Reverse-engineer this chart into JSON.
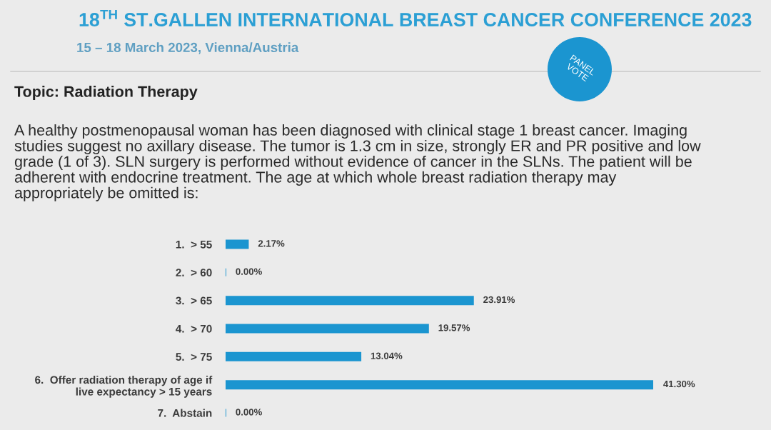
{
  "chart_data": {
    "type": "bar",
    "orientation": "horizontal",
    "title": "18$^{TH}$ ST.GALLEN INTERNATIONAL BREAST CANCER CONFERENCE 2023",
    "subtitle": "15 – 18 March 2023, Vienna/Austria",
    "annotations": [
      "Topic: Radiation Therapy",
      "A healthy postmenopausal woman has been diagnosed with clinical stage 1 breast cancer. Imaging\nstudies suggest no axillary disease. The tumor is 1.3 cm in size, strongly ER and PR positive and low\ngrade (1 of 3). SLN surgery is performed without evidence of cancer in the SLNs. The patient will be\nadherent with endocrine treatment. The age at which whole breast radiation therapy may\nappropriately be omitted is:",
      "PANEL\nVOTE"
    ],
    "categories": [
      "1.  > 55",
      "2.  > 60",
      "3.  > 65",
      "4.  > 70",
      "5.  > 75",
      "6.  Offer radiation therapy of age if\nlive expectancy > 15 years",
      "7.  Abstain"
    ],
    "values": [
      2.17,
      0,
      23.91,
      19.57,
      13.04,
      41.3,
      0
    ],
    "value_labels": [
      "2.17%",
      "0.00%",
      "23.91%",
      "19.57%",
      "13.04%",
      "41.30%",
      "0.00%"
    ],
    "color": "#1b95d0",
    "tick_labels": "y"
  }
}
